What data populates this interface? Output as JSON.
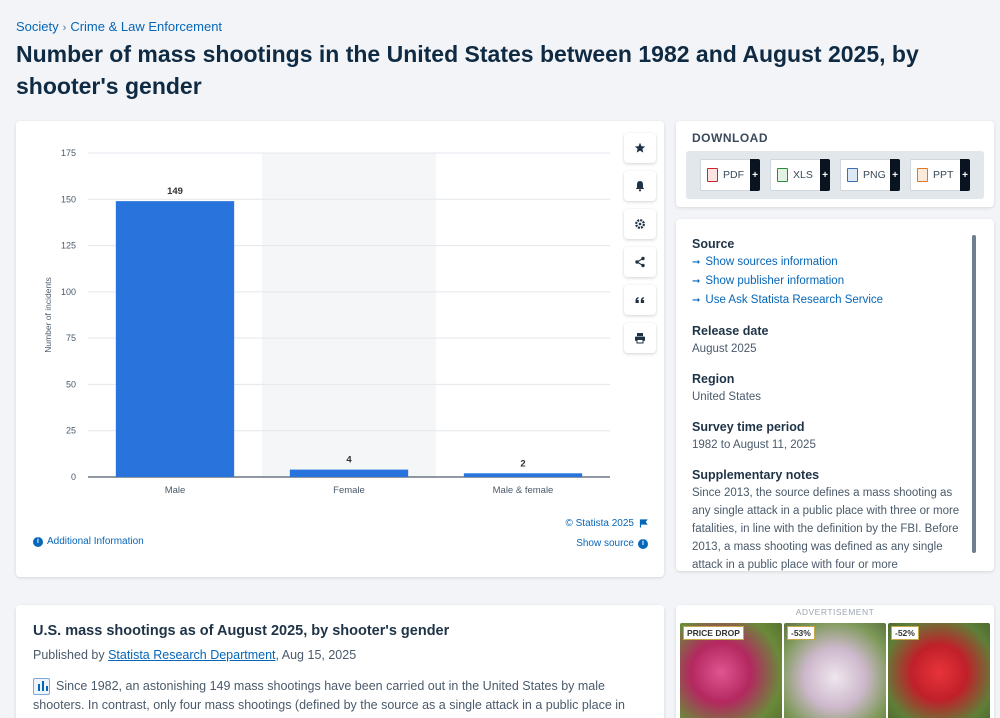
{
  "breadcrumb": {
    "items": [
      "Society",
      "Crime & Law Enforcement"
    ],
    "separator": "›"
  },
  "page_title": "Number of mass shootings in the United States between 1982 and August 2025, by shooter's gender",
  "chart_data": {
    "type": "bar",
    "categories": [
      "Male",
      "Female",
      "Male & female"
    ],
    "values": [
      149,
      4,
      2
    ],
    "data_labels": [
      "149",
      "4",
      "2"
    ],
    "ylabel": "Number of incidents",
    "xlabel": "",
    "ylim": [
      0,
      175
    ],
    "yticks": [
      0,
      25,
      50,
      75,
      100,
      125,
      150,
      175
    ],
    "grid": true,
    "bar_color": "#2873dc",
    "highlight_category": "Female"
  },
  "chart_footer": {
    "additional_info": "Additional Information",
    "copyright": "© Statista 2025",
    "show_source": "Show source"
  },
  "toolbar": [
    "star-icon",
    "bell-icon",
    "gear-icon",
    "share-icon",
    "quote-icon",
    "print-icon"
  ],
  "download": {
    "title": "DOWNLOAD",
    "buttons": [
      {
        "label": "PDF",
        "color": "#d2232a"
      },
      {
        "label": "XLS",
        "color": "#2e8b3a"
      },
      {
        "label": "PNG",
        "color": "#3a6fb0"
      },
      {
        "label": "PPT",
        "color": "#e0761f"
      }
    ],
    "plus": "+"
  },
  "meta": {
    "source_heading": "Source",
    "source_links": [
      "Show sources information",
      "Show publisher information",
      "Use Ask Statista Research Service"
    ],
    "release_heading": "Release date",
    "release_value": "August 2025",
    "region_heading": "Region",
    "region_value": "United States",
    "survey_heading": "Survey time period",
    "survey_value": "1982 to August 11, 2025",
    "notes_heading": "Supplementary notes",
    "notes_value": "Since 2013, the source defines a mass shooting as any single attack in a public place with three or more fatalities, in line with the definition by the FBI. Before 2013, a mass shooting was defined as any single attack in a public place with four or more"
  },
  "article": {
    "title": "U.S. mass shootings as of August 2025, by shooter's gender",
    "published_prefix": "Published by",
    "publisher": "Statista Research Department",
    "published_date": ", Aug 15, 2025",
    "body": "Since 1982, an astonishing 149 mass shootings have been carried out in the United States by male shooters. In contrast, only four mass shootings (defined by the source as a single attack in a public place in"
  },
  "ad": {
    "label": "ADVERTISEMENT",
    "tiles": [
      {
        "tag": "PRICE DROP",
        "color": "#c23a6a"
      },
      {
        "tag": "-53%",
        "color": "#d9c7d2"
      },
      {
        "tag": "-52%",
        "color": "#d8262f"
      }
    ],
    "choice": "▷ ✕"
  }
}
